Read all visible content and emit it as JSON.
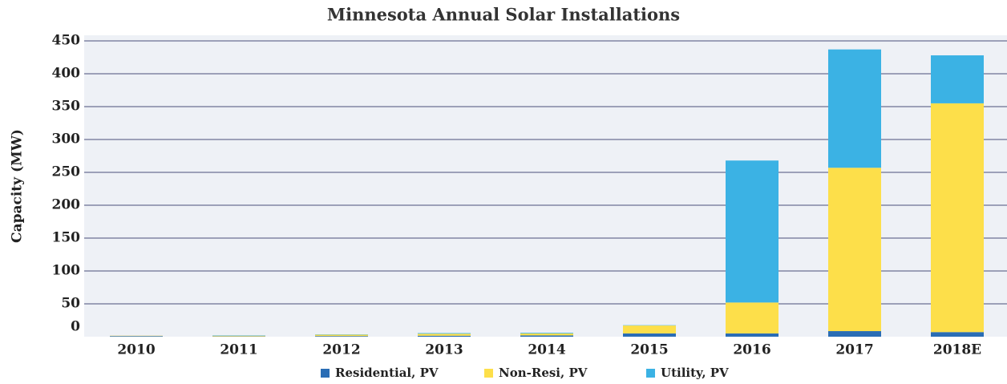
{
  "chart_data": {
    "type": "stacked_bar",
    "title": "Minnesota Annual Solar Installations",
    "y_label": "Capacity (MW)",
    "categories": [
      "2010",
      "2011",
      "2012",
      "2013",
      "2014",
      "2015",
      "2016",
      "2017",
      "2018E"
    ],
    "series": [
      {
        "name": "Residential, PV",
        "color": "#2a6db5",
        "values": [
          1,
          0.5,
          1,
          1.5,
          2,
          5,
          5,
          8.5,
          7
        ]
      },
      {
        "name": "Non-Resi, PV",
        "color": "#fddf4a",
        "values": [
          0.5,
          1,
          2,
          3,
          3,
          12,
          47,
          248.5,
          348
        ]
      },
      {
        "name": "Utility, PV",
        "color": "#3bb2e4",
        "values": [
          0,
          0.5,
          0.5,
          1,
          1,
          0.5,
          216,
          180,
          73
        ]
      }
    ],
    "ylim": [
      0,
      450
    ],
    "yticks": [
      0,
      50,
      100,
      150,
      200,
      250,
      300,
      350,
      400,
      450
    ],
    "grid": true
  }
}
